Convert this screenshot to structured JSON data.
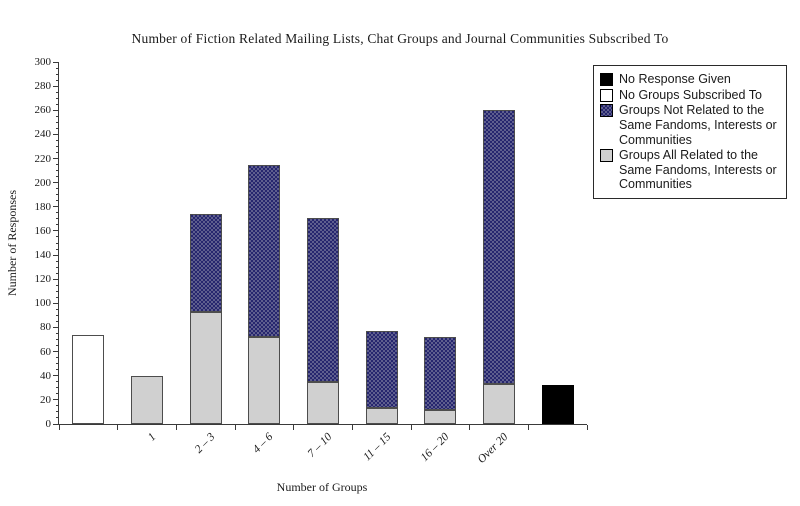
{
  "title": "Number of Fiction Related Mailing Lists, Chat Groups and Journal Communities Subscribed To",
  "colors": {
    "no_response": "#000000",
    "none": "#ffffff",
    "all_related": "#d0d0d0",
    "not_related_base": "#26266e",
    "not_related_dot": "#5e5e8e",
    "bar_border": "#4d4d4d",
    "axis": "#3a3a3a"
  },
  "legend": {
    "items": [
      {
        "key": "no_response",
        "label": "No Response Given"
      },
      {
        "key": "none",
        "label": "No Groups Subscribed To"
      },
      {
        "key": "not_related",
        "label": "Groups Not Related to the Same Fandoms, Interests or Communities"
      },
      {
        "key": "all_related",
        "label": "Groups All Related to the Same Fandoms, Interests or Communities"
      }
    ]
  },
  "chart_data": {
    "type": "bar",
    "stacked": true,
    "title": "Number of Fiction Related Mailing Lists, Chat Groups and Journal Communities Subscribed To",
    "xlabel": "Number of Groups",
    "ylabel": "Number of Responses",
    "ylim": [
      0,
      300
    ],
    "ytick_major": 20,
    "ytick_minor": 5,
    "grid": false,
    "legend_position": "top-right",
    "categories": [
      "",
      "1",
      "2 – 3",
      "4 – 6",
      "7 – 10",
      "11 – 15",
      "16 – 20",
      "Over 20",
      ""
    ],
    "bars": [
      {
        "category": "",
        "segments": [
          {
            "series": "No Groups Subscribed To",
            "key": "none",
            "value": 74
          }
        ]
      },
      {
        "category": "1",
        "segments": [
          {
            "series": "Groups All Related to the Same Fandoms, Interests or Communities",
            "key": "all_related",
            "value": 40
          }
        ]
      },
      {
        "category": "2 – 3",
        "segments": [
          {
            "series": "Groups All Related to the Same Fandoms, Interests or Communities",
            "key": "all_related",
            "value": 93
          },
          {
            "series": "Groups Not Related to the Same Fandoms, Interests or Communities",
            "key": "not_related",
            "value": 81
          }
        ]
      },
      {
        "category": "4 – 6",
        "segments": [
          {
            "series": "Groups All Related to the Same Fandoms, Interests or Communities",
            "key": "all_related",
            "value": 72
          },
          {
            "series": "Groups Not Related to the Same Fandoms, Interests or Communities",
            "key": "not_related",
            "value": 143
          }
        ]
      },
      {
        "category": "7 – 10",
        "segments": [
          {
            "series": "Groups All Related to the Same Fandoms, Interests or Communities",
            "key": "all_related",
            "value": 35
          },
          {
            "series": "Groups Not Related to the Same Fandoms, Interests or Communities",
            "key": "not_related",
            "value": 136
          }
        ]
      },
      {
        "category": "11 – 15",
        "segments": [
          {
            "series": "Groups All Related to the Same Fandoms, Interests or Communities",
            "key": "all_related",
            "value": 13
          },
          {
            "series": "Groups Not Related to the Same Fandoms, Interests or Communities",
            "key": "not_related",
            "value": 64
          }
        ]
      },
      {
        "category": "16 – 20",
        "segments": [
          {
            "series": "Groups All Related to the Same Fandoms, Interests or Communities",
            "key": "all_related",
            "value": 12
          },
          {
            "series": "Groups Not Related to the Same Fandoms, Interests or Communities",
            "key": "not_related",
            "value": 60
          }
        ]
      },
      {
        "category": "Over 20",
        "segments": [
          {
            "series": "Groups All Related to the Same Fandoms, Interests or Communities",
            "key": "all_related",
            "value": 33
          },
          {
            "series": "Groups Not Related to the Same Fandoms, Interests or Communities",
            "key": "not_related",
            "value": 227
          }
        ]
      },
      {
        "category": "",
        "segments": [
          {
            "series": "No Response Given",
            "key": "no_response",
            "value": 32
          }
        ]
      }
    ]
  }
}
